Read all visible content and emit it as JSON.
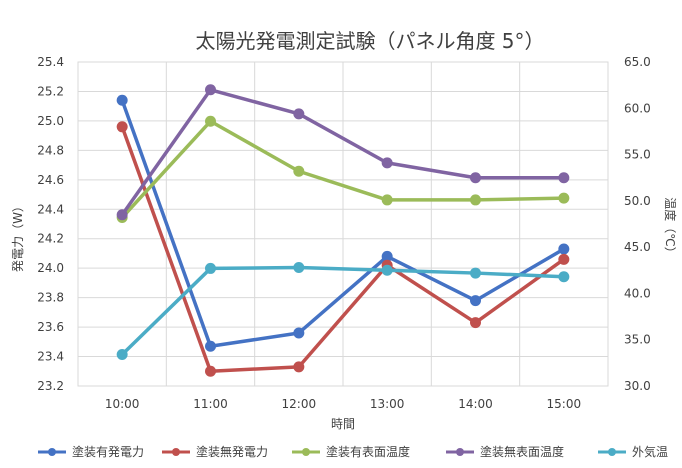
{
  "chart_data": {
    "type": "line",
    "title": "太陽光発電測定試験（パネル角度 5°）",
    "xlabel": "時間",
    "ylabel_left": "発電力（W）",
    "ylabel_right": "温度（℃）",
    "categories": [
      "10:00",
      "11:00",
      "12:00",
      "13:00",
      "14:00",
      "15:00"
    ],
    "y_left": {
      "min": 23.2,
      "max": 25.4,
      "step": 0.2,
      "decimals": 1
    },
    "y_right": {
      "min": 30.0,
      "max": 65.0,
      "step": 5.0,
      "decimals": 1
    },
    "grid": true,
    "legend_position": "bottom",
    "series": [
      {
        "name": "塗装有発電力",
        "axis": "left",
        "color": "#4472c4",
        "values": [
          25.14,
          23.47,
          23.56,
          24.08,
          23.78,
          24.13
        ]
      },
      {
        "name": "塗装無発電力",
        "axis": "left",
        "color": "#c0504d",
        "values": [
          24.96,
          23.3,
          23.33,
          24.02,
          23.63,
          24.06
        ]
      },
      {
        "name": "塗装有表面温度",
        "axis": "right",
        "color": "#9bbb59",
        "values": [
          48.2,
          58.6,
          53.2,
          50.1,
          50.1,
          50.3
        ]
      },
      {
        "name": "塗装無表面温度",
        "axis": "right",
        "color": "#8064a2",
        "values": [
          48.5,
          62.0,
          59.4,
          54.1,
          52.5,
          52.5
        ]
      },
      {
        "name": "外気温",
        "axis": "right",
        "color": "#4bacc6",
        "values": [
          33.4,
          42.7,
          42.8,
          42.5,
          42.2,
          41.8
        ]
      }
    ]
  }
}
